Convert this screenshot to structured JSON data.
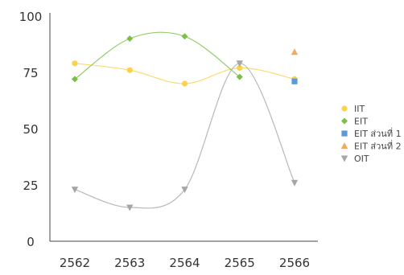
{
  "chart_data": {
    "type": "line",
    "x": [
      "2562",
      "2563",
      "2564",
      "2565",
      "2566"
    ],
    "yticks": [
      "0",
      "25",
      "50",
      "75",
      "100"
    ],
    "ylim": [
      0,
      100
    ],
    "grid": false,
    "legend_position": "right",
    "series": [
      {
        "name": "IIT",
        "color": "#FAD24B",
        "marker": "circle",
        "values": [
          79,
          76,
          70,
          77,
          72
        ]
      },
      {
        "name": "EIT",
        "color": "#7BC044",
        "marker": "diamond",
        "values": [
          72,
          90,
          91,
          73,
          null
        ]
      },
      {
        "name": "EIT ส่วนที่ 1",
        "color": "#5B9BD5",
        "marker": "square",
        "values": [
          null,
          null,
          null,
          null,
          71
        ]
      },
      {
        "name": "EIT ส่วนที่ 2",
        "color": "#F4A95F",
        "marker": "triangle-up",
        "values": [
          null,
          null,
          null,
          null,
          84
        ]
      },
      {
        "name": "OIT",
        "color": "#A6A6A6",
        "marker": "triangle-down",
        "values": [
          23,
          15,
          23,
          79,
          26
        ]
      }
    ]
  }
}
